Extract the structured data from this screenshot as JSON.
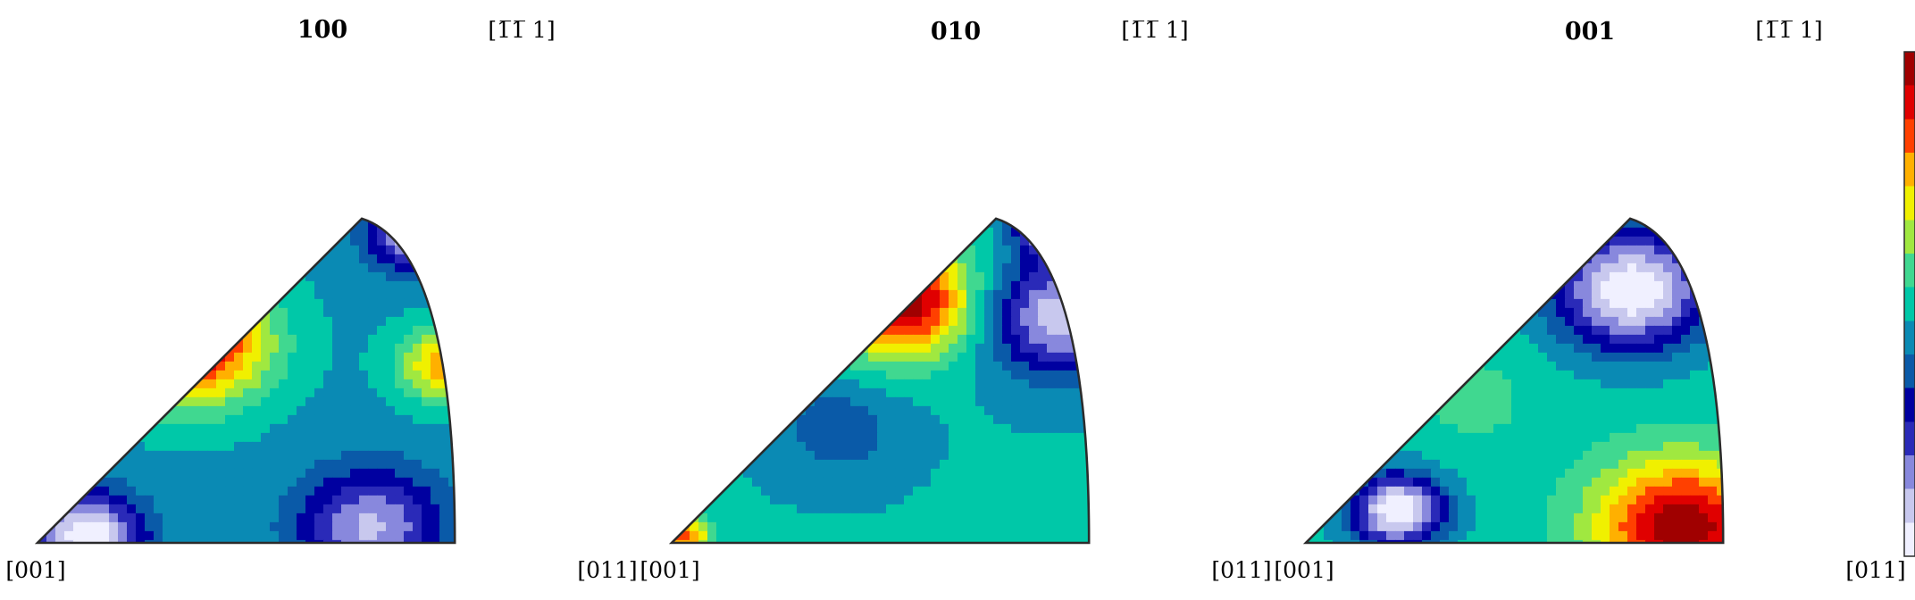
{
  "figure": {
    "panels": [
      {
        "title": "100",
        "corner_labels": {
          "origin": "[001]",
          "right": "[011]",
          "apex": "[1̅1̅ 1]"
        },
        "hotspots": [
          {
            "u": 0.36,
            "v": 0.62,
            "value": 1.0,
            "spread": 0.13
          },
          {
            "u": 0.98,
            "v": 0.55,
            "value": 0.78,
            "spread": 0.08
          },
          {
            "u": 0.12,
            "v": 0.02,
            "value": 0.0,
            "spread": 0.09
          },
          {
            "u": 0.8,
            "v": 0.05,
            "value": 0.12,
            "spread": 0.12
          },
          {
            "u": 0.92,
            "v": 0.96,
            "value": 0.0,
            "spread": 0.08
          }
        ],
        "base_level": 0.45
      },
      {
        "title": "010",
        "corner_labels": {
          "origin": "[001]",
          "right": "[011]",
          "apex": "[1̅1̅ 1]"
        },
        "hotspots": [
          {
            "u": 0.55,
            "v": 0.75,
            "value": 1.0,
            "spread": 0.12
          },
          {
            "u": 0.02,
            "v": 0.02,
            "value": 0.85,
            "spread": 0.05
          },
          {
            "u": 0.93,
            "v": 0.7,
            "value": 0.08,
            "spread": 0.12
          },
          {
            "u": 0.92,
            "v": 0.97,
            "value": 0.0,
            "spread": 0.06
          },
          {
            "u": 0.4,
            "v": 0.35,
            "value": 0.35,
            "spread": 0.1
          }
        ],
        "base_level": 0.47
      },
      {
        "title": "001",
        "corner_labels": {
          "origin": "[001]",
          "right": "[011]",
          "apex": "[1̅1̅ 1]"
        },
        "hotspots": [
          {
            "u": 0.9,
            "v": 0.05,
            "value": 1.0,
            "spread": 0.14
          },
          {
            "u": 0.22,
            "v": 0.1,
            "value": 0.0,
            "spread": 0.08
          },
          {
            "u": 0.78,
            "v": 0.78,
            "value": 0.0,
            "spread": 0.13
          },
          {
            "u": 0.4,
            "v": 0.45,
            "value": 0.55,
            "spread": 0.12
          }
        ],
        "base_level": 0.5
      }
    ],
    "colormap": [
      "#f0f0ff",
      "#c8c8ee",
      "#8888dd",
      "#2a2ab8",
      "#0000a0",
      "#0a5aa8",
      "#0a8ab4",
      "#00c8a8",
      "#40d890",
      "#a0e840",
      "#f0f000",
      "#ffb000",
      "#ff4000",
      "#e00000",
      "#a00000"
    ]
  }
}
